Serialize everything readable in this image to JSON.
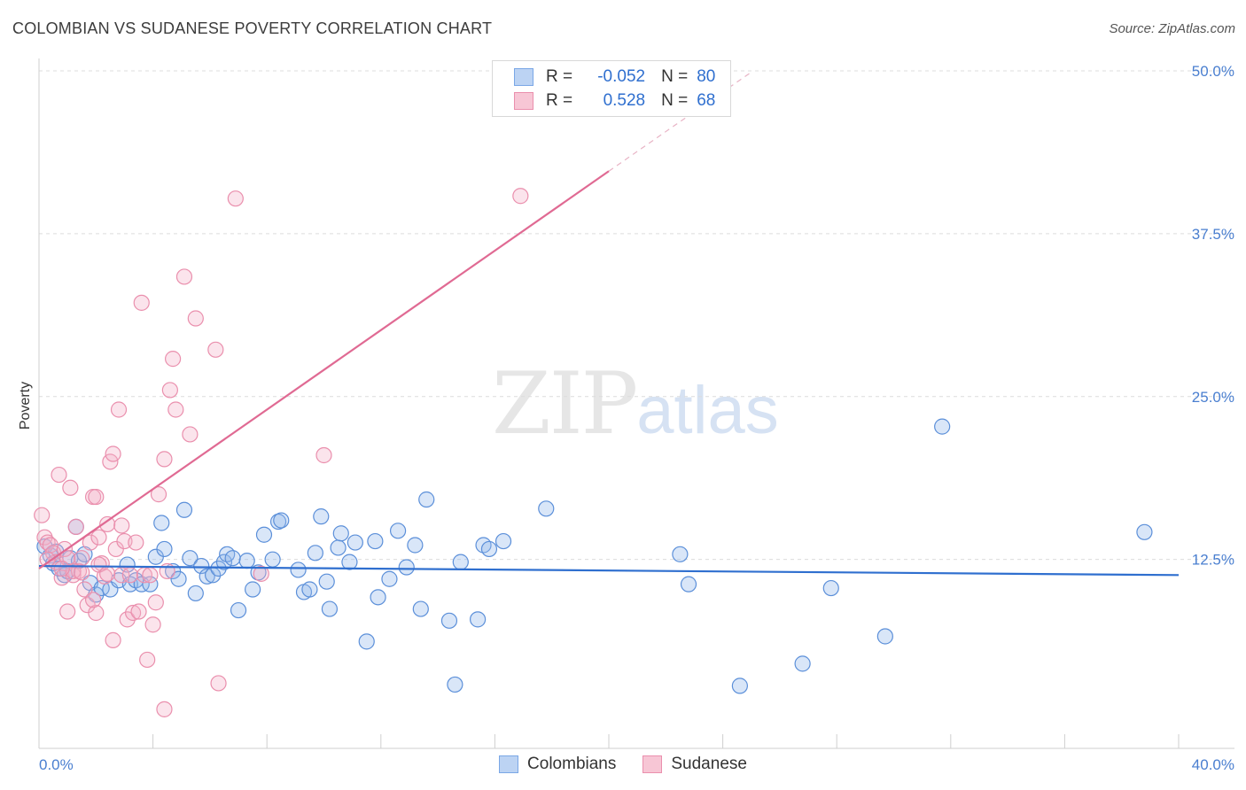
{
  "header": {
    "title": "COLOMBIAN VS SUDANESE POVERTY CORRELATION CHART",
    "source": "Source: ZipAtlas.com"
  },
  "watermark": {
    "zip": "ZIP",
    "atlas": "atlas"
  },
  "legend": {
    "r_label": "R =",
    "n_label": "N =",
    "rows": [
      {
        "r": "-0.052",
        "n": "80",
        "color": "#7aa7e6",
        "fill": "#bcd3f3"
      },
      {
        "r": "0.528",
        "n": "68",
        "color": "#ea8fad",
        "fill": "#f7c6d5"
      }
    ]
  },
  "bottom_legend": {
    "colombians": "Colombians",
    "sudanese": "Sudanese"
  },
  "chart_data": {
    "type": "scatter",
    "xlabel": "",
    "ylabel": "Poverty",
    "xlim": [
      0,
      40
    ],
    "ylim": [
      0,
      50
    ],
    "x_tick_labels": [
      "0.0%",
      "40.0%"
    ],
    "y_ticks": [
      12.5,
      25,
      37.5,
      50
    ],
    "y_tick_labels": [
      "12.5%",
      "25.0%",
      "37.5%",
      "50.0%"
    ],
    "grid": true,
    "legend_position": "top-center",
    "series": [
      {
        "name": "Colombians",
        "color": "#5b8fd9",
        "fill": "rgba(147,184,236,0.35)",
        "trend": {
          "x0": 0,
          "y0": 12.0,
          "x1": 40,
          "y1": 11.3,
          "color": "#2f6fcf"
        },
        "points": [
          [
            0.2,
            13.5
          ],
          [
            0.4,
            12.8
          ],
          [
            0.5,
            12.2
          ],
          [
            0.7,
            11.8
          ],
          [
            0.9,
            11.3
          ],
          [
            1.1,
            12.6
          ],
          [
            1.3,
            15.0
          ],
          [
            1.4,
            12.4
          ],
          [
            1.6,
            12.9
          ],
          [
            1.8,
            10.7
          ],
          [
            2.0,
            9.8
          ],
          [
            2.2,
            10.3
          ],
          [
            2.5,
            10.2
          ],
          [
            2.8,
            10.9
          ],
          [
            3.1,
            12.1
          ],
          [
            3.2,
            10.6
          ],
          [
            3.4,
            10.9
          ],
          [
            3.6,
            10.6
          ],
          [
            3.9,
            10.6
          ],
          [
            4.1,
            12.7
          ],
          [
            4.3,
            15.3
          ],
          [
            4.4,
            13.3
          ],
          [
            4.7,
            11.6
          ],
          [
            4.9,
            11.0
          ],
          [
            5.1,
            16.3
          ],
          [
            5.3,
            12.6
          ],
          [
            5.5,
            9.9
          ],
          [
            5.7,
            12.0
          ],
          [
            5.9,
            11.2
          ],
          [
            6.1,
            11.3
          ],
          [
            6.3,
            11.8
          ],
          [
            6.5,
            12.3
          ],
          [
            6.6,
            12.9
          ],
          [
            6.8,
            12.6
          ],
          [
            7.0,
            8.6
          ],
          [
            7.3,
            12.4
          ],
          [
            7.5,
            10.2
          ],
          [
            7.7,
            11.5
          ],
          [
            7.9,
            14.4
          ],
          [
            8.2,
            12.5
          ],
          [
            8.4,
            15.4
          ],
          [
            8.5,
            15.5
          ],
          [
            9.1,
            11.7
          ],
          [
            9.3,
            10.0
          ],
          [
            9.5,
            10.2
          ],
          [
            9.7,
            13.0
          ],
          [
            9.9,
            15.8
          ],
          [
            10.1,
            10.8
          ],
          [
            10.2,
            8.7
          ],
          [
            10.5,
            13.4
          ],
          [
            10.6,
            14.5
          ],
          [
            10.9,
            12.3
          ],
          [
            11.1,
            13.8
          ],
          [
            11.5,
            6.2
          ],
          [
            11.8,
            13.9
          ],
          [
            11.9,
            9.6
          ],
          [
            12.3,
            11.0
          ],
          [
            12.6,
            14.7
          ],
          [
            12.9,
            11.9
          ],
          [
            13.2,
            13.6
          ],
          [
            13.4,
            8.7
          ],
          [
            13.6,
            17.1
          ],
          [
            14.4,
            7.8
          ],
          [
            14.8,
            12.3
          ],
          [
            14.6,
            2.9
          ],
          [
            15.4,
            7.9
          ],
          [
            15.6,
            13.6
          ],
          [
            15.8,
            13.3
          ],
          [
            16.3,
            13.9
          ],
          [
            17.8,
            16.4
          ],
          [
            22.5,
            12.9
          ],
          [
            22.8,
            10.6
          ],
          [
            24.6,
            2.8
          ],
          [
            26.8,
            4.5
          ],
          [
            27.8,
            10.3
          ],
          [
            29.7,
            6.6
          ],
          [
            31.7,
            22.7
          ],
          [
            38.8,
            14.6
          ],
          [
            0.6,
            13.1
          ],
          [
            1.0,
            11.6
          ]
        ]
      },
      {
        "name": "Sudanese",
        "color": "#ea8fad",
        "fill": "rgba(244,178,200,0.35)",
        "trend": {
          "x0": 0,
          "y0": 11.8,
          "x1": 20,
          "y1": 42.3,
          "color": "#e06a93"
        },
        "trend_ext": {
          "x0": 20,
          "y0": 42.3,
          "x1": 25,
          "y1": 49.9
        },
        "points": [
          [
            0.1,
            15.9
          ],
          [
            0.2,
            14.2
          ],
          [
            0.3,
            13.8
          ],
          [
            0.4,
            13.6
          ],
          [
            0.5,
            13.0
          ],
          [
            0.6,
            12.3
          ],
          [
            0.7,
            19.0
          ],
          [
            0.8,
            11.1
          ],
          [
            0.9,
            13.3
          ],
          [
            1.0,
            8.5
          ],
          [
            1.0,
            12.6
          ],
          [
            1.1,
            18.0
          ],
          [
            1.2,
            11.3
          ],
          [
            1.3,
            15.0
          ],
          [
            1.4,
            11.6
          ],
          [
            1.5,
            12.6
          ],
          [
            1.6,
            10.2
          ],
          [
            1.7,
            9.0
          ],
          [
            1.8,
            13.8
          ],
          [
            1.9,
            17.3
          ],
          [
            2.0,
            8.4
          ],
          [
            2.0,
            17.3
          ],
          [
            2.1,
            14.2
          ],
          [
            2.2,
            12.2
          ],
          [
            2.3,
            11.2
          ],
          [
            2.4,
            15.2
          ],
          [
            2.5,
            20.0
          ],
          [
            2.6,
            20.6
          ],
          [
            2.6,
            6.3
          ],
          [
            2.7,
            13.3
          ],
          [
            2.8,
            24.0
          ],
          [
            2.9,
            15.1
          ],
          [
            2.9,
            11.3
          ],
          [
            3.0,
            13.9
          ],
          [
            3.1,
            7.9
          ],
          [
            3.2,
            11.3
          ],
          [
            3.3,
            8.4
          ],
          [
            3.4,
            13.8
          ],
          [
            3.5,
            8.5
          ],
          [
            3.6,
            32.2
          ],
          [
            3.7,
            11.3
          ],
          [
            3.8,
            4.8
          ],
          [
            3.9,
            11.3
          ],
          [
            4.0,
            7.5
          ],
          [
            4.1,
            9.2
          ],
          [
            4.2,
            17.5
          ],
          [
            4.4,
            20.2
          ],
          [
            4.5,
            11.6
          ],
          [
            4.4,
            1.0
          ],
          [
            4.6,
            25.5
          ],
          [
            4.7,
            27.9
          ],
          [
            4.8,
            24.0
          ],
          [
            5.1,
            34.2
          ],
          [
            5.3,
            22.1
          ],
          [
            5.5,
            31.0
          ],
          [
            6.2,
            28.6
          ],
          [
            6.3,
            3.0
          ],
          [
            6.9,
            40.2
          ],
          [
            7.8,
            11.4
          ],
          [
            10.0,
            20.5
          ],
          [
            16.9,
            40.4
          ],
          [
            1.2,
            11.6
          ],
          [
            1.5,
            11.5
          ],
          [
            0.3,
            12.5
          ],
          [
            2.1,
            12.1
          ],
          [
            2.4,
            11.4
          ],
          [
            0.8,
            11.8
          ],
          [
            1.9,
            9.4
          ]
        ]
      }
    ]
  }
}
